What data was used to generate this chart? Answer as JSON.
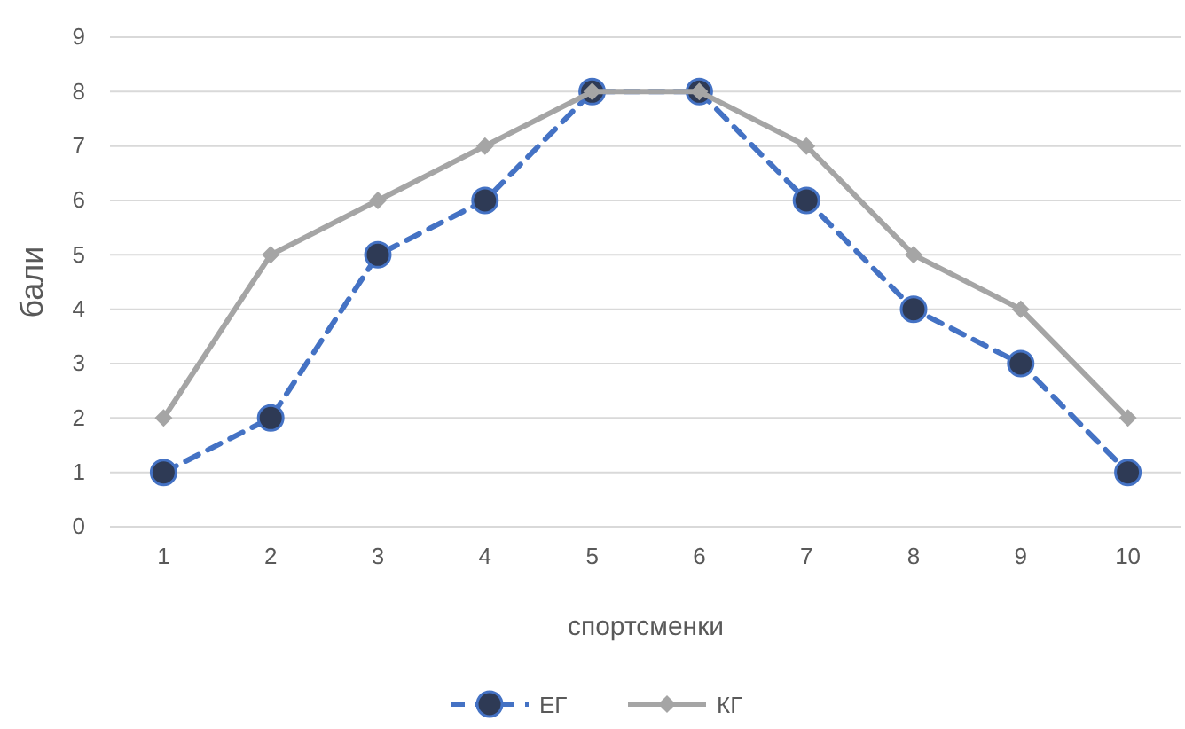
{
  "chart_data": {
    "type": "line",
    "xlabel": "спортсменки",
    "ylabel": "бали",
    "categories": [
      "1",
      "2",
      "3",
      "4",
      "5",
      "6",
      "7",
      "8",
      "9",
      "10"
    ],
    "series": [
      {
        "name": "ЕГ",
        "color": "#4472c4",
        "values": [
          1,
          2,
          5,
          6,
          8,
          8,
          6,
          4,
          3,
          1
        ],
        "marker": "circle",
        "line_style": "dashed"
      },
      {
        "name": "КГ",
        "color": "#a5a5a5",
        "values": [
          2,
          5,
          6,
          7,
          8,
          8,
          7,
          5,
          4,
          2
        ],
        "marker": "diamond",
        "line_style": "solid"
      }
    ],
    "ylim": [
      0,
      9
    ],
    "yticks": [
      0,
      1,
      2,
      3,
      4,
      5,
      6,
      7,
      8,
      9
    ],
    "grid": "y",
    "legend": "bottom"
  }
}
